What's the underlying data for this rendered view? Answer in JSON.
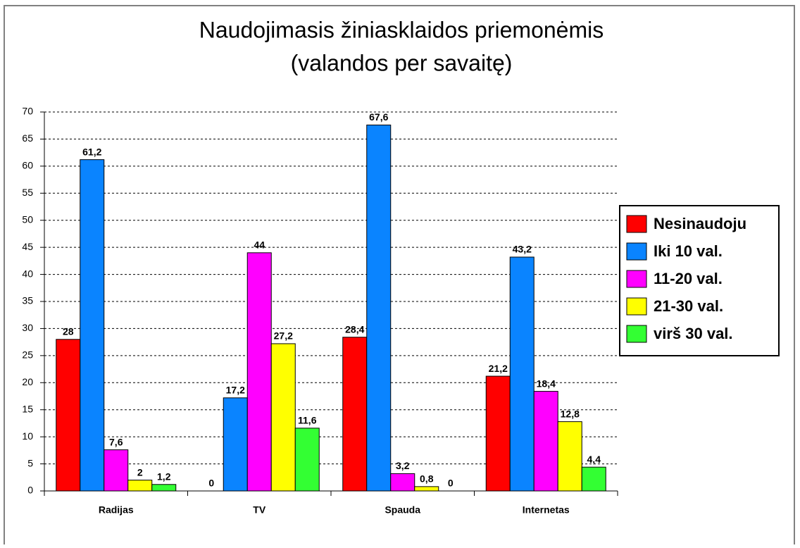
{
  "chart_data": {
    "type": "bar",
    "title": "Naudojimasis žiniasklaidos priemonėmis",
    "subtitle": "(valandos per savaitę)",
    "categories": [
      "Radijas",
      "TV",
      "Spauda",
      "Internetas"
    ],
    "series": [
      {
        "name": "Nesinaudoju",
        "color": "#ff0000",
        "values": [
          28,
          0,
          28.4,
          21.2
        ],
        "value_labels": [
          "28",
          "0",
          "28,4",
          "21,2"
        ]
      },
      {
        "name": "Iki 10 val.",
        "color": "#0a84ff",
        "values": [
          61.2,
          17.2,
          67.6,
          43.2
        ],
        "value_labels": [
          "61,2",
          "17,2",
          "67,6",
          "43,2"
        ]
      },
      {
        "name": "11-20 val.",
        "color": "#ff00ff",
        "values": [
          7.6,
          44,
          3.2,
          18.4
        ],
        "value_labels": [
          "7,6",
          "44",
          "3,2",
          "18,4"
        ]
      },
      {
        "name": "21-30 val.",
        "color": "#ffff00",
        "values": [
          2,
          27.2,
          0.8,
          12.8
        ],
        "value_labels": [
          "2",
          "27,2",
          "0,8",
          "12,8"
        ]
      },
      {
        "name": "virš 30 val.",
        "color": "#33ff33",
        "values": [
          1.2,
          11.6,
          0,
          4.4
        ],
        "value_labels": [
          "1,2",
          "11,6",
          "0",
          "4,4"
        ]
      }
    ],
    "ylim": [
      0,
      70
    ],
    "yticks": [
      0,
      5,
      10,
      15,
      20,
      25,
      30,
      35,
      40,
      45,
      50,
      55,
      60,
      65,
      70
    ],
    "grid": true,
    "legend": "right"
  }
}
